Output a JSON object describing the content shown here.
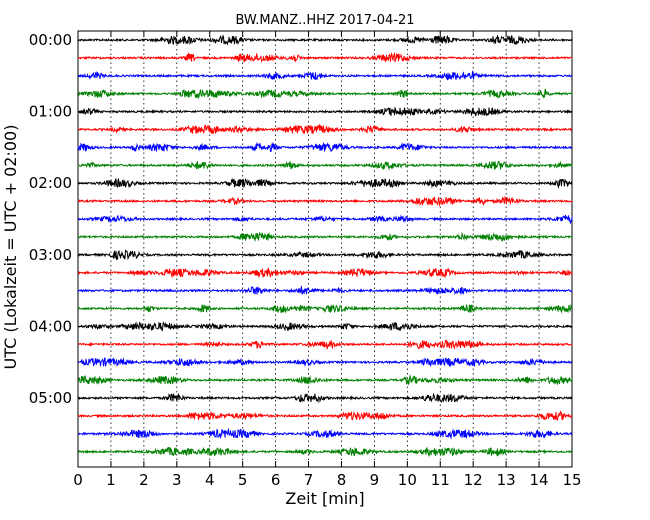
{
  "chart_data": {
    "type": "line",
    "title": "BW.MANZ..HHZ 2017-04-21",
    "xlabel": "Zeit  [min]",
    "ylabel": "UTC (Lokalzeit = UTC + 02:00)",
    "xlim": [
      0,
      15
    ],
    "x_ticks": [
      "0",
      "1",
      "2",
      "3",
      "4",
      "5",
      "6",
      "7",
      "8",
      "9",
      "10",
      "11",
      "12",
      "13",
      "14",
      "15"
    ],
    "y_ticks": [
      "00:00",
      "01:00",
      "02:00",
      "03:00",
      "04:00",
      "05:00"
    ],
    "grid": "vertical dotted lines at each minute",
    "trace_interval_min": 15,
    "trace_count": 24,
    "trace_colors": [
      "#000000",
      "#ff0000",
      "#0000ff",
      "#008000"
    ]
  }
}
